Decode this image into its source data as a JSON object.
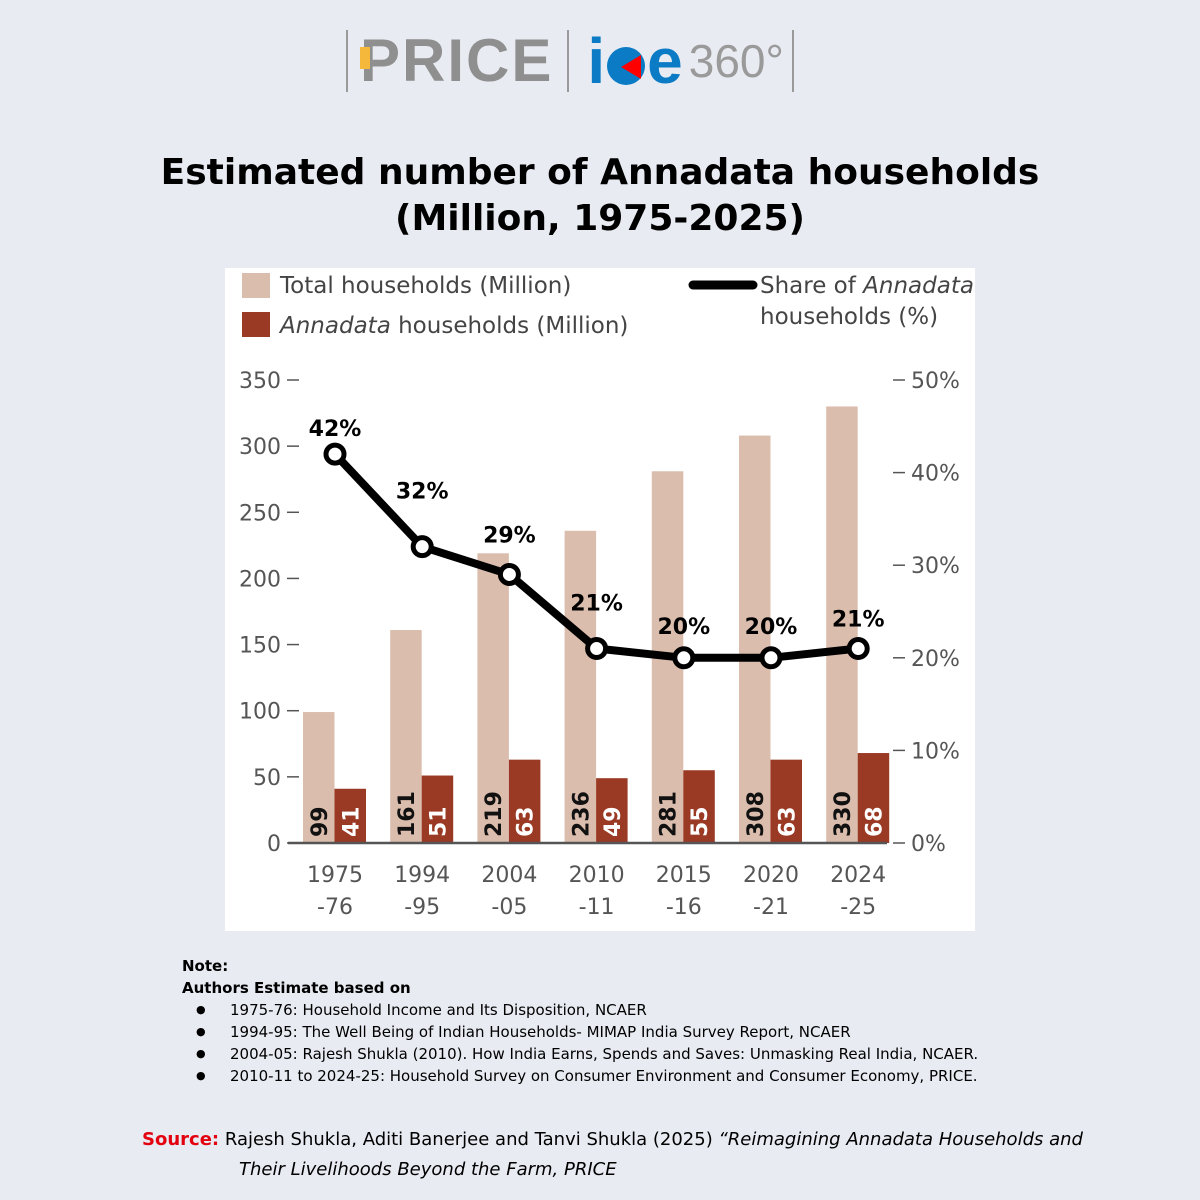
{
  "logo": {
    "left_brand": "PRICE",
    "right_brand_prefix": "i",
    "right_brand_suffix": "e",
    "right_brand_number": "360°",
    "colors": {
      "price_gray": "#8f8f8f",
      "price_accent": "#f5b83a",
      "ice_blue": "#0a7bc4",
      "ice_red": "#ff0000"
    }
  },
  "title": {
    "line1": "Estimated number of Annadata households",
    "line2": "(Million, 1975-2025)"
  },
  "chart_data": {
    "type": "bar",
    "title": "Estimated number of Annadata households (Million, 1975-2025)",
    "categories": [
      "1975 -76",
      "1994 -95",
      "2004 -05",
      "2010 -11",
      "2015 -16",
      "2020 -21",
      "2024 -25"
    ],
    "category_lines": [
      [
        "1975",
        "-76"
      ],
      [
        "1994",
        "-95"
      ],
      [
        "2004",
        "-05"
      ],
      [
        "2010",
        "-11"
      ],
      [
        "2015",
        "-16"
      ],
      [
        "2020",
        "-21"
      ],
      [
        "2024",
        "-25"
      ]
    ],
    "series": [
      {
        "name": "Total households (Million)",
        "type": "bar",
        "axis": "left",
        "color": "#dbbdad",
        "label_color": "#111111",
        "values": [
          99,
          161,
          219,
          236,
          281,
          308,
          330
        ]
      },
      {
        "name": "Annadata households (Million)",
        "name_italic": "Annadata",
        "name_rest": " households (Million)",
        "type": "bar",
        "axis": "left",
        "color": "#9b3a24",
        "label_color": "#ffffff",
        "values": [
          41,
          51,
          63,
          49,
          55,
          63,
          68
        ]
      },
      {
        "name": "Share of Annadata households (%)",
        "name_line1_prefix": "Share of ",
        "name_line1_italic": "Annadata",
        "name_line2": "households (%)",
        "type": "line",
        "axis": "right",
        "color": "#000000",
        "values": [
          42,
          32,
          29,
          21,
          20,
          20,
          21
        ],
        "labels": [
          "42%",
          "32%",
          "29%",
          "21%",
          "20%",
          "20%",
          "21%"
        ]
      }
    ],
    "left_axis": {
      "ylim": [
        0,
        350
      ],
      "ticks": [
        0,
        50,
        100,
        150,
        200,
        250,
        300,
        350
      ],
      "label": ""
    },
    "right_axis": {
      "ylim": [
        0,
        50
      ],
      "ticks": [
        0,
        10,
        20,
        30,
        40,
        50
      ],
      "tick_labels": [
        "0%",
        "10%",
        "20%",
        "30%",
        "40%",
        "50%"
      ],
      "label": ""
    },
    "xlabel": "",
    "grid": false,
    "legend_placement": "top"
  },
  "note": {
    "heading": "Note:",
    "subheading": "Authors Estimate based on",
    "items": [
      "1975-76: Household Income and Its Disposition, NCAER",
      "1994-95: The Well Being of Indian Households- MIMAP India Survey Report, NCAER",
      "2004-05: Rajesh Shukla (2010). How India Earns, Spends and Saves: Unmasking Real India, NCAER.",
      "2010-11 to 2024-25: Household Survey on Consumer Environment and Consumer Economy, PRICE."
    ]
  },
  "source": {
    "label": "Source:",
    "authors": " Rajesh Shukla, Aditi Banerjee and Tanvi Shukla (2025) ",
    "title_line1": "“Reimagining Annadata Households and",
    "title_line2": "Their Livelihoods Beyond the Farm, PRICE"
  }
}
